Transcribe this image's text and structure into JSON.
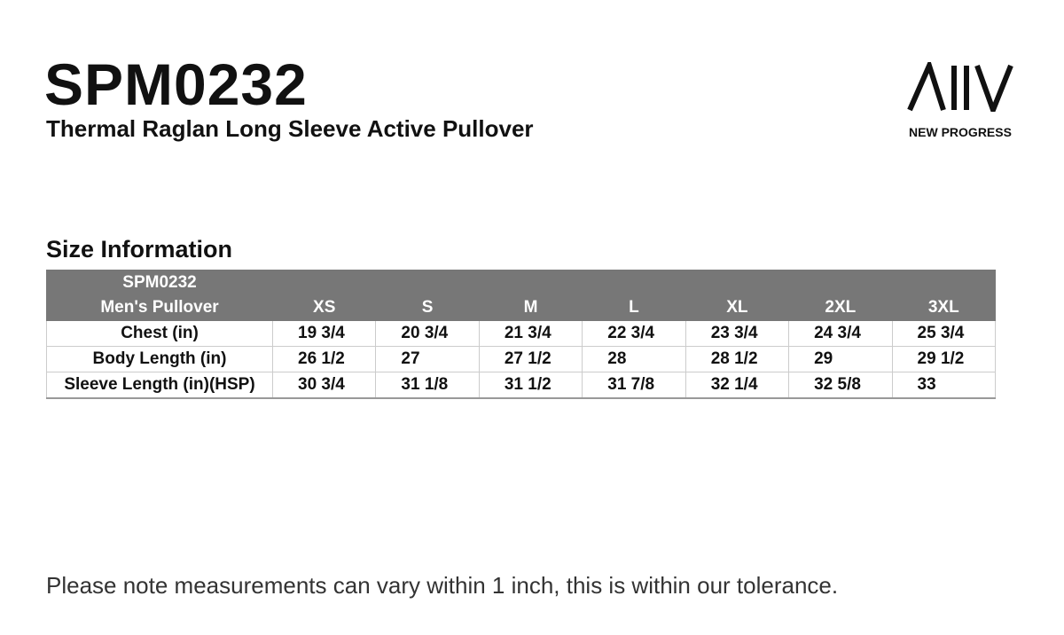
{
  "header": {
    "title": "SPM0232",
    "subtitle": "Thermal Raglan Long Sleeve Active Pullover",
    "brand": "NEW PROGRESS"
  },
  "section_title": "Size Information",
  "table": {
    "corner": [
      "SPM0232",
      "Men's Pullover"
    ],
    "columns": [
      "XS",
      "S",
      "M",
      "L",
      "XL",
      "2XL",
      "3XL"
    ],
    "rows": [
      [
        "Chest (in)",
        "19 3/4",
        "20 3/4",
        "21 3/4",
        "22 3/4",
        "23 3/4",
        "24 3/4",
        "25 3/4"
      ],
      [
        "Body Length (in)",
        "26 1/2",
        "27",
        "27 1/2",
        "28",
        "28 1/2",
        "29",
        "29 1/2"
      ],
      [
        "Sleeve Length (in)(HSP)",
        "30 3/4",
        "31 1/8",
        "31 1/2",
        "31 7/8",
        "32 1/4",
        "32 5/8",
        "33"
      ]
    ]
  },
  "footnote": "Please note measurements can vary within 1 inch, this is within our tolerance."
}
